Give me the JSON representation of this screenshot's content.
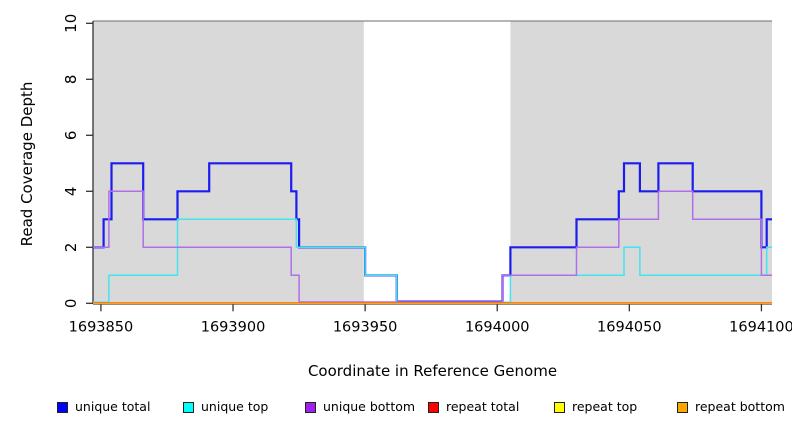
{
  "chart_data": {
    "type": "line",
    "subtype": "step-coverage",
    "title": "",
    "xlabel": "Coordinate in Reference Genome",
    "ylabel": "Read Coverage Depth",
    "xlim": [
      1693847,
      1694104
    ],
    "ylim": [
      0,
      10
    ],
    "x_ticks": [
      1693850,
      1693900,
      1693950,
      1694000,
      1694050,
      1694100
    ],
    "y_ticks": [
      0,
      2,
      4,
      6,
      8,
      10
    ],
    "grid": false,
    "legend_position": "bottom",
    "shade_color": "#d9d9d9",
    "shaded_regions": [
      {
        "from": 1693847,
        "to": 1693949.5
      },
      {
        "from": 1694005,
        "to": 1694104
      }
    ],
    "series": [
      {
        "name": "unique total",
        "swatch_color": "#0000ff",
        "line_color": "#1c1cf0",
        "width": 2.2,
        "zero_offset": 1.7,
        "points": [
          [
            1693847,
            2
          ],
          [
            1693851,
            3
          ],
          [
            1693854,
            5
          ],
          [
            1693866,
            3
          ],
          [
            1693879,
            4
          ],
          [
            1693891,
            5
          ],
          [
            1693922,
            4
          ],
          [
            1693924,
            3
          ],
          [
            1693925,
            2
          ],
          [
            1693950,
            1
          ],
          [
            1693962,
            0
          ],
          [
            1694002,
            1
          ],
          [
            1694005,
            2
          ],
          [
            1694030,
            3
          ],
          [
            1694046,
            4
          ],
          [
            1694048,
            5
          ],
          [
            1694054,
            4
          ],
          [
            1694061,
            5
          ],
          [
            1694074,
            4
          ],
          [
            1694100,
            2
          ],
          [
            1694102,
            3
          ]
        ]
      },
      {
        "name": "unique top",
        "swatch_color": "#00ffff",
        "line_color": "#45e4f0",
        "width": 1.5,
        "zero_offset": 1.1,
        "points": [
          [
            1693847,
            0
          ],
          [
            1693853,
            1
          ],
          [
            1693879,
            3
          ],
          [
            1693924,
            2
          ],
          [
            1693950,
            1
          ],
          [
            1693962,
            0
          ],
          [
            1694005,
            1
          ],
          [
            1694048,
            2
          ],
          [
            1694054,
            1
          ],
          [
            1694102,
            2
          ]
        ]
      },
      {
        "name": "unique bottom",
        "swatch_color": "#a020f0",
        "line_color": "#b06ee8",
        "width": 1.5,
        "zero_offset": 1.3,
        "points": [
          [
            1693847,
            2
          ],
          [
            1693853,
            4
          ],
          [
            1693866,
            2
          ],
          [
            1693922,
            1
          ],
          [
            1693925,
            0
          ],
          [
            1694002,
            1
          ],
          [
            1694030,
            2
          ],
          [
            1694046,
            3
          ],
          [
            1694061,
            4
          ],
          [
            1694074,
            3
          ],
          [
            1694100,
            1
          ]
        ]
      },
      {
        "name": "repeat total",
        "swatch_color": "#ff0000",
        "line_color": "#e8325c",
        "width": 1.2,
        "zero_offset": 0.6,
        "points": [
          [
            1693847,
            0
          ]
        ]
      },
      {
        "name": "repeat top",
        "swatch_color": "#ffff00",
        "line_color": "#f2e21e",
        "width": 1.2,
        "zero_offset": 0.2,
        "points": [
          [
            1693847,
            0
          ]
        ]
      },
      {
        "name": "repeat bottom",
        "swatch_color": "#ffa500",
        "line_color": "#ffa50a",
        "width": 1.6,
        "zero_offset": 0.0,
        "points": [
          [
            1693847,
            0
          ]
        ]
      }
    ]
  }
}
